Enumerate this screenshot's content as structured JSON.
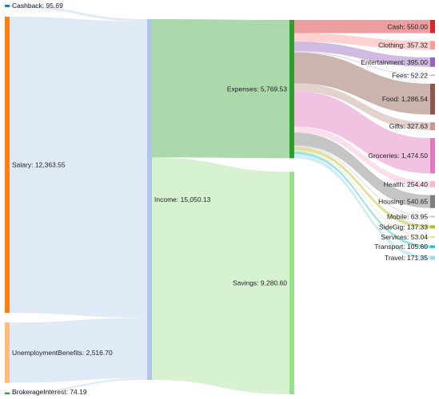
{
  "chart_data": {
    "type": "sankey",
    "title": "",
    "nodes": [
      {
        "id": "cashback",
        "label": "Cashback: 95.69",
        "value": 95.69,
        "column": 0,
        "color": "#1f77b4"
      },
      {
        "id": "salary",
        "label": "Salary: 12,363.55",
        "value": 12363.55,
        "column": 0,
        "color": "#ff7f0e"
      },
      {
        "id": "unemployment",
        "label": "UnemploymentBenefits: 2,516.70",
        "value": 2516.7,
        "column": 0,
        "color": "#ffbb78"
      },
      {
        "id": "brokerage",
        "label": "BrokerageInterest: 74.19",
        "value": 74.19,
        "column": 0,
        "color": "#2ca02c"
      },
      {
        "id": "income",
        "label": "Income: 15,050.13",
        "value": 15050.13,
        "column": 1,
        "color": "#aec7e8"
      },
      {
        "id": "expenses",
        "label": "Expenses: 5,769.53",
        "value": 5769.53,
        "column": 2,
        "color": "#2ca02c"
      },
      {
        "id": "savings",
        "label": "Savings: 9,280.60",
        "value": 9280.6,
        "column": 2,
        "color": "#98df8a"
      },
      {
        "id": "cash",
        "label": "Cash: 550.00",
        "value": 550.0,
        "column": 3,
        "color": "#d62728"
      },
      {
        "id": "clothing",
        "label": "Clothing: 357.32",
        "value": 357.32,
        "column": 3,
        "color": "#ff9896"
      },
      {
        "id": "entertainment",
        "label": "Entertainment: 395.00",
        "value": 395.0,
        "column": 3,
        "color": "#9467bd"
      },
      {
        "id": "fees",
        "label": "Fees: 52.22",
        "value": 52.22,
        "column": 3,
        "color": "#c5b0d5"
      },
      {
        "id": "food",
        "label": "Food: 1,286.54",
        "value": 1286.54,
        "column": 3,
        "color": "#8c564b"
      },
      {
        "id": "gifts",
        "label": "Gifts: 327.63",
        "value": 327.63,
        "column": 3,
        "color": "#c49c94"
      },
      {
        "id": "groceries",
        "label": "Groceries: 1,474.50",
        "value": 1474.5,
        "column": 3,
        "color": "#e377c2"
      },
      {
        "id": "health",
        "label": "Health: 254.40",
        "value": 254.4,
        "column": 3,
        "color": "#f7b6d2"
      },
      {
        "id": "housing",
        "label": "Housing: 540.65",
        "value": 540.65,
        "column": 3,
        "color": "#7f7f7f"
      },
      {
        "id": "mobile",
        "label": "Mobile: 63.95",
        "value": 63.95,
        "column": 3,
        "color": "#c7c7c7"
      },
      {
        "id": "sidegig",
        "label": "SideGig: 137.33",
        "value": 137.33,
        "column": 3,
        "color": "#bcbd22"
      },
      {
        "id": "services",
        "label": "Services: 53.04",
        "value": 53.04,
        "column": 3,
        "color": "#dbdb8d"
      },
      {
        "id": "transport",
        "label": "Transport: 105.60",
        "value": 105.6,
        "column": 3,
        "color": "#17becf"
      },
      {
        "id": "travel",
        "label": "Travel: 171.35",
        "value": 171.35,
        "column": 3,
        "color": "#9edae5"
      }
    ],
    "links": [
      {
        "source": "cashback",
        "target": "income",
        "value": 95.69
      },
      {
        "source": "salary",
        "target": "income",
        "value": 12363.55
      },
      {
        "source": "unemployment",
        "target": "income",
        "value": 2516.7
      },
      {
        "source": "brokerage",
        "target": "income",
        "value": 74.19
      },
      {
        "source": "income",
        "target": "expenses",
        "value": 5769.53
      },
      {
        "source": "income",
        "target": "savings",
        "value": 9280.6
      },
      {
        "source": "expenses",
        "target": "cash",
        "value": 550.0
      },
      {
        "source": "expenses",
        "target": "clothing",
        "value": 357.32
      },
      {
        "source": "expenses",
        "target": "entertainment",
        "value": 395.0
      },
      {
        "source": "expenses",
        "target": "fees",
        "value": 52.22
      },
      {
        "source": "expenses",
        "target": "food",
        "value": 1286.54
      },
      {
        "source": "expenses",
        "target": "gifts",
        "value": 327.63
      },
      {
        "source": "expenses",
        "target": "groceries",
        "value": 1474.5
      },
      {
        "source": "expenses",
        "target": "health",
        "value": 254.4
      },
      {
        "source": "expenses",
        "target": "housing",
        "value": 540.65
      },
      {
        "source": "expenses",
        "target": "mobile",
        "value": 63.95
      },
      {
        "source": "expenses",
        "target": "sidegig",
        "value": 137.33
      },
      {
        "source": "expenses",
        "target": "services",
        "value": 53.04
      },
      {
        "source": "expenses",
        "target": "transport",
        "value": 105.6
      },
      {
        "source": "expenses",
        "target": "travel",
        "value": 171.35
      }
    ]
  }
}
